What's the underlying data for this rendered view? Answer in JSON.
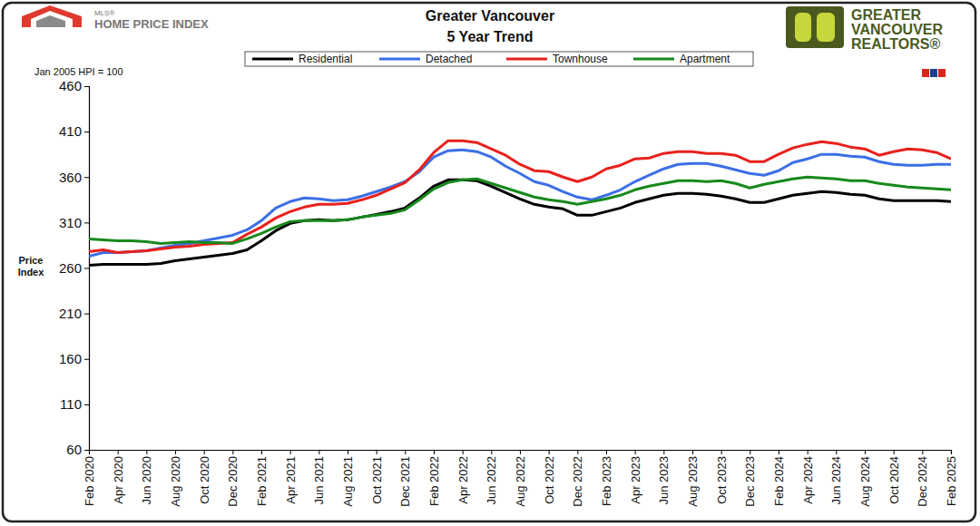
{
  "chart_data": {
    "type": "line",
    "title": "Greater Vancouver",
    "subtitle": "5 Year Trend",
    "y_label": "Price Index",
    "annotations": [
      "Jan 2005 HPI = 100"
    ],
    "brand_left": [
      "MLS®",
      "HOME PRICE INDEX"
    ],
    "brand_right": [
      "GREATER",
      "VANCOUVER",
      "REALTORS®"
    ],
    "categories": [
      "Feb 2020",
      null,
      "Apr 2020",
      null,
      "Jun 2020",
      null,
      "Aug 2020",
      null,
      "Oct 2020",
      null,
      "Dec 2020",
      null,
      "Feb 2021",
      null,
      "Apr 2021",
      null,
      "Jun 2021",
      null,
      "Aug 2021",
      null,
      "Oct 2021",
      null,
      "Dec 2021",
      null,
      "Feb 2022",
      null,
      "Apr 2022",
      null,
      "Jun 2022",
      null,
      "Aug 2022",
      null,
      "Oct 2022",
      null,
      "Dec 2022",
      null,
      "Feb 2023",
      null,
      "Apr 2023",
      null,
      "Jun 2023",
      null,
      "Aug 2023",
      null,
      "Oct 2023",
      null,
      "Dec 2023",
      null,
      "Feb 2024",
      null,
      "Apr 2024",
      null,
      "Jun 2024",
      null,
      "Aug 2024",
      null,
      "Oct 2024",
      null,
      "Dec 2024",
      null,
      "Feb 2025"
    ],
    "series": [
      {
        "name": "Residential",
        "color": "#000000",
        "values": [
          263,
          264,
          264,
          264,
          264,
          265,
          268,
          270,
          272,
          274,
          276,
          280,
          290,
          301,
          309,
          312,
          313,
          312,
          313,
          316,
          319,
          322,
          326,
          337,
          350,
          357,
          357,
          356,
          350,
          343,
          336,
          330,
          327,
          325,
          318,
          318,
          322,
          326,
          332,
          336,
          340,
          342,
          342,
          341,
          339,
          336,
          332,
          332,
          336,
          340,
          342,
          344,
          343,
          341,
          340,
          336,
          334,
          334,
          334,
          334,
          333
        ]
      },
      {
        "name": "Detached",
        "color": "#3b6fe6",
        "values": [
          273,
          277,
          277,
          278,
          279,
          282,
          285,
          287,
          290,
          293,
          296,
          302,
          312,
          326,
          333,
          337,
          336,
          334,
          335,
          339,
          344,
          349,
          355,
          366,
          382,
          389,
          390,
          388,
          382,
          372,
          364,
          355,
          351,
          344,
          338,
          335,
          340,
          346,
          355,
          362,
          369,
          374,
          375,
          375,
          372,
          368,
          364,
          362,
          367,
          376,
          380,
          385,
          385,
          383,
          382,
          377,
          374,
          373,
          373,
          374,
          374
        ]
      },
      {
        "name": "Townhouse",
        "color": "#e8211d",
        "values": [
          278,
          280,
          277,
          278,
          279,
          281,
          283,
          284,
          286,
          287,
          288,
          297,
          305,
          315,
          322,
          327,
          330,
          330,
          331,
          335,
          340,
          347,
          354,
          368,
          387,
          400,
          400,
          398,
          391,
          384,
          374,
          367,
          366,
          360,
          355,
          360,
          369,
          373,
          380,
          381,
          386,
          388,
          388,
          386,
          386,
          384,
          377,
          377,
          385,
          392,
          396,
          399,
          397,
          393,
          391,
          384,
          388,
          391,
          390,
          387,
          380
        ]
      },
      {
        "name": "Apartment",
        "color": "#17891c",
        "values": [
          292,
          291,
          290,
          290,
          289,
          287,
          288,
          289,
          288,
          288,
          287,
          292,
          298,
          305,
          311,
          312,
          312,
          312,
          313,
          316,
          318,
          320,
          324,
          335,
          347,
          354,
          357,
          358,
          353,
          348,
          343,
          338,
          335,
          333,
          330,
          333,
          336,
          340,
          346,
          350,
          353,
          356,
          356,
          355,
          356,
          353,
          348,
          352,
          355,
          358,
          360,
          359,
          358,
          356,
          356,
          353,
          351,
          349,
          348,
          347,
          346
        ]
      }
    ],
    "ylim": [
      60,
      460
    ],
    "yticks": [
      60,
      110,
      160,
      210,
      260,
      310,
      360,
      410,
      460
    ],
    "grid": false,
    "legend": "top"
  }
}
